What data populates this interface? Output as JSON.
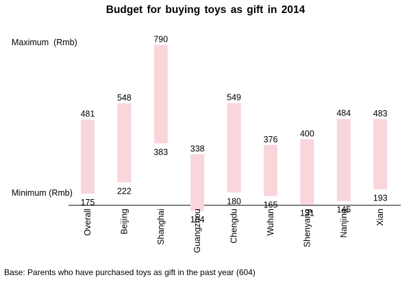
{
  "title": "Budget for buying toys as gift in 2014",
  "max_caption": "Maximum  (Rmb)",
  "min_caption": "Minimum (Rmb)",
  "footnote": "Base: Parents who have purchased toys as gift in the past year (604)",
  "colors": {
    "bar": "#f9d6dc",
    "axis": "#000000",
    "text": "#000000"
  },
  "chart_data": {
    "type": "bar",
    "subtype": "floating-range",
    "title": "Budget for buying toys as gift in 2014",
    "categories": [
      "Overall",
      "Beijing",
      "Shanghai",
      "Guangzhou",
      "Chengdu",
      "Wuhan",
      "Shenyang",
      "Nanjing",
      "Xian"
    ],
    "max": [
      481,
      548,
      790,
      338,
      549,
      376,
      400,
      484,
      483
    ],
    "min": [
      175,
      222,
      383,
      104,
      180,
      165,
      131,
      145,
      193
    ],
    "ylabel_top": "Maximum  (Rmb)",
    "ylabel_bottom": "Minimum (Rmb)",
    "ylim": [
      0,
      900
    ],
    "grid": false,
    "legend": "none"
  }
}
